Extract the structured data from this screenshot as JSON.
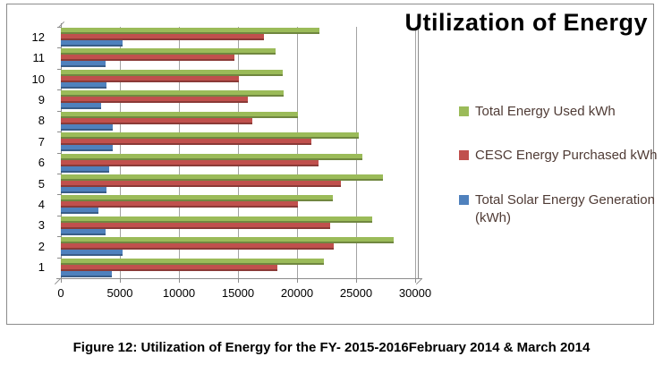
{
  "figure": {
    "caption": "Figure 12: Utilization of Energy for the FY- 2015-2016February 2014 & March 2014"
  },
  "chart_data": {
    "type": "bar",
    "orientation": "horizontal",
    "title": "Utilization of Energy",
    "categories": [
      1,
      2,
      3,
      4,
      5,
      6,
      7,
      8,
      9,
      10,
      11,
      12
    ],
    "series": [
      {
        "name": "Total Energy Used kWh",
        "color": "#9BBB59",
        "values": [
          22300,
          28200,
          26400,
          23000,
          27300,
          25500,
          25200,
          20100,
          18900,
          18800,
          18200,
          21900
        ]
      },
      {
        "name": "CESC Energy  Purchased kWh",
        "color": "#C0504D",
        "values": [
          18300,
          23100,
          22800,
          20100,
          23700,
          21800,
          21200,
          16200,
          15800,
          15100,
          14700,
          17200
        ]
      },
      {
        "name": "Total Solar Energy Generation (kWh)",
        "color": "#4F81BD",
        "values": [
          4300,
          5200,
          3800,
          3200,
          3900,
          4100,
          4400,
          4400,
          3400,
          3900,
          3800,
          5200
        ]
      }
    ],
    "x_ticks": [
      0,
      5000,
      10000,
      15000,
      20000,
      25000,
      30000
    ],
    "xlim": [
      0,
      30000
    ],
    "grid": true,
    "legend_position": "right",
    "colors": {
      "gridline": "#A3A3A3",
      "axis": "#8C8C8C",
      "chart_border": "#8C8C8C",
      "legend_text": "#4F3B35",
      "title_text": "#000000"
    }
  }
}
